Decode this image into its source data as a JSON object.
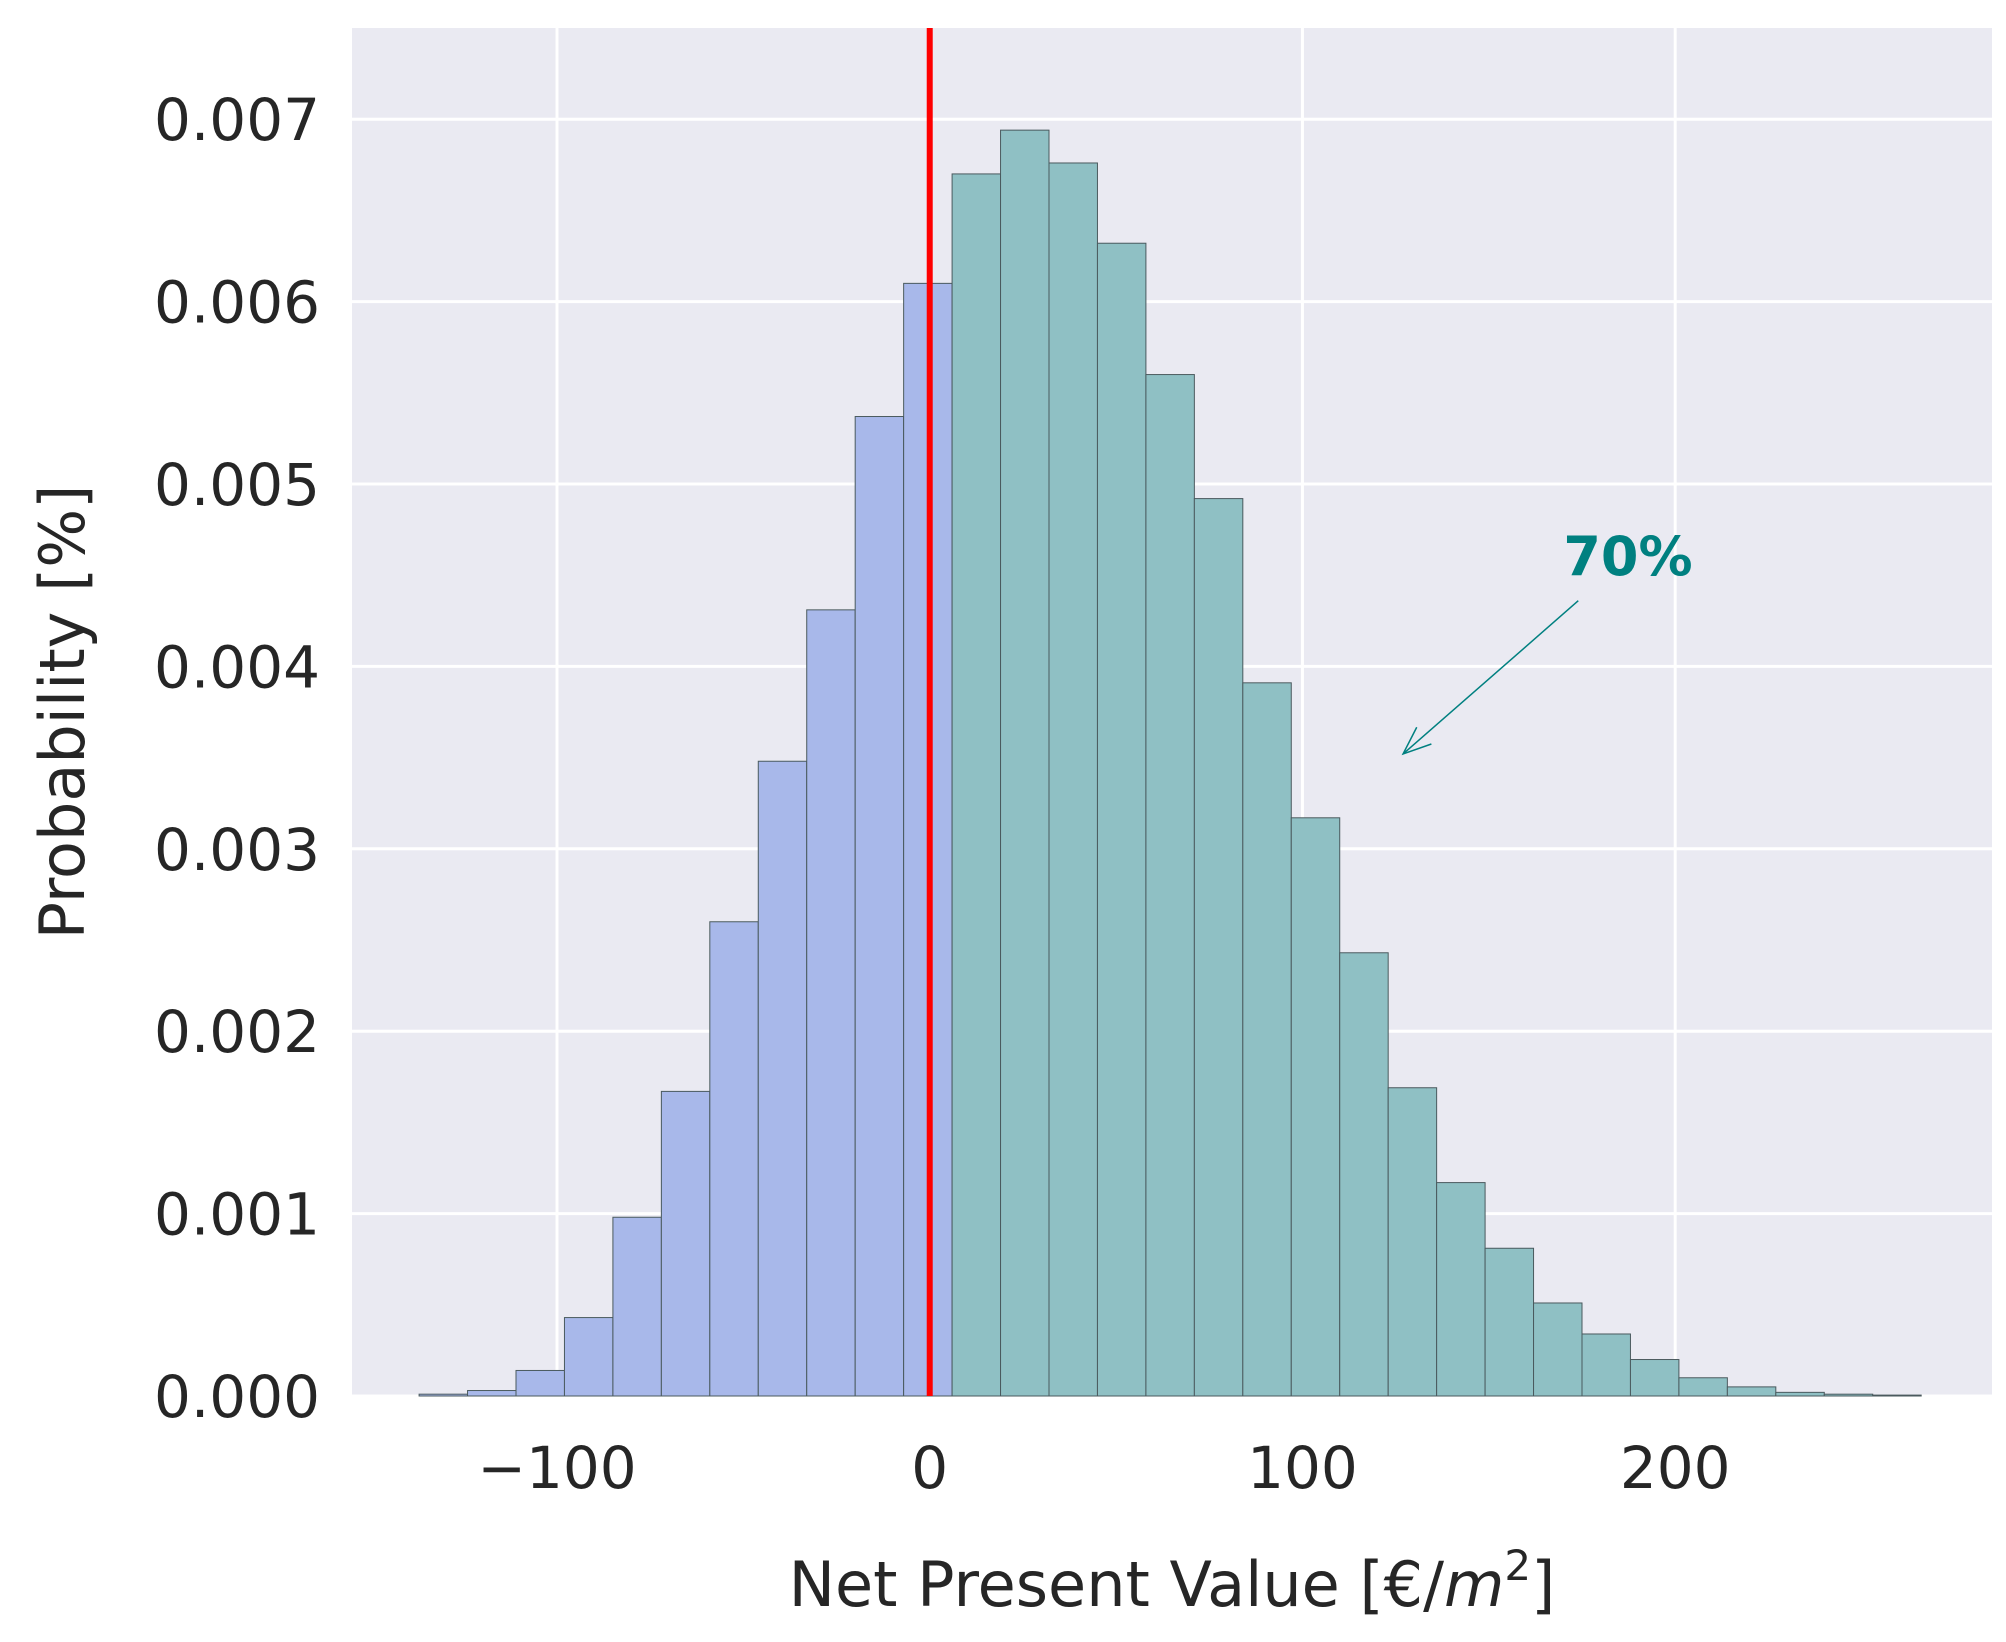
{
  "chart_data": {
    "type": "bar",
    "title": "",
    "xlabel": "Net Present Value [€/",
    "xlabel_unit": "m",
    "xlabel_exp": "2",
    "xlabel_close": "]",
    "ylabel": "Probability [%]",
    "xlim": [
      -155,
      285
    ],
    "ylim": [
      0,
      0.0075
    ],
    "grid": true,
    "xticks": [
      -100,
      0,
      100,
      200
    ],
    "xtick_labels": [
      "−100",
      "0",
      "100",
      "200"
    ],
    "yticks": [
      0,
      0.001,
      0.002,
      0.003,
      0.004,
      0.005,
      0.006,
      0.007
    ],
    "ytick_labels": [
      "0.000",
      "0.001",
      "0.002",
      "0.003",
      "0.004",
      "0.005",
      "0.006",
      "0.007"
    ],
    "threshold_x": 0,
    "series": [
      {
        "bin_edges": [
          -137,
          -124,
          -111,
          -98,
          -85,
          -72,
          -59,
          -46,
          -33,
          -20,
          -7,
          6
        ],
        "values": [
          1e-05,
          3e-05,
          0.00014,
          0.00043,
          0.00098,
          0.00167,
          0.0026,
          0.00348,
          0.00431,
          0.00537,
          0.0061
        ],
        "color": "#a8b8ea"
      },
      {
        "bin_edges": [
          6,
          19,
          32,
          45,
          58,
          71,
          84,
          97,
          110,
          123,
          136,
          149,
          162,
          175,
          188,
          201,
          214,
          227,
          240,
          253,
          266
        ],
        "values": [
          0.0067,
          0.00694,
          0.00676,
          0.00632,
          0.0056,
          0.00492,
          0.00391,
          0.00317,
          0.00243,
          0.00169,
          0.00117,
          0.00081,
          0.00051,
          0.00034,
          0.0002,
          0.0001,
          5e-05,
          2e-05,
          1e-05,
          5e-06
        ],
        "color": "#8fc0c4"
      }
    ],
    "annotation": {
      "text": "70%",
      "color": "#008080",
      "text_x": 170,
      "text_y": 0.0045,
      "arrow_from": [
        174,
        0.00436
      ],
      "arrow_to": [
        127,
        0.00352
      ]
    },
    "colors": {
      "background": "#eaeaf2",
      "grid": "#ffffff",
      "edge": "#4a5a5e",
      "threshold": "#ff0000"
    }
  }
}
